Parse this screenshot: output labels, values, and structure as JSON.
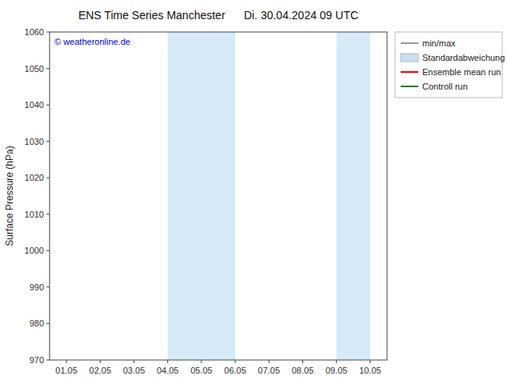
{
  "chart_data": {
    "type": "line",
    "title": "ENS Time Series Manchester      Di. 30.04.2024 09 UTC",
    "y_label": "Surface Pressure (hPa)",
    "categories": [
      "01.05",
      "02.05",
      "03.05",
      "04.05",
      "05.05",
      "06.05",
      "07.05",
      "08.05",
      "09.05",
      "10.05"
    ],
    "series": [
      {
        "name": "min/max",
        "color": "#999999",
        "type": "line",
        "values": [
          null,
          null,
          null,
          null,
          null,
          null,
          null,
          null,
          null,
          null
        ]
      },
      {
        "name": "Standardabweichung",
        "color": "#ccddee",
        "type": "area",
        "values": [
          null,
          null,
          null,
          null,
          null,
          null,
          null,
          null,
          null,
          null
        ]
      },
      {
        "name": "Ensemble mean run",
        "color": "red",
        "type": "line",
        "values": [
          null,
          null,
          null,
          null,
          null,
          null,
          null,
          null,
          null,
          null
        ]
      },
      {
        "name": "Controll run",
        "color": "green",
        "type": "line",
        "values": [
          null,
          null,
          null,
          null,
          null,
          null,
          null,
          null,
          null,
          null
        ]
      }
    ],
    "shaded_bands": [
      {
        "from": "04.05",
        "to": "06.05",
        "color": "#d6eaf8"
      },
      {
        "from": "09.05",
        "to": "10.05",
        "color": "#d6eaf8"
      }
    ],
    "annotations": [
      {
        "text": "© weatheronline.de",
        "color": "#0000cc"
      }
    ],
    "ylim": [
      970,
      1060
    ],
    "yticks": [
      970,
      980,
      990,
      1000,
      1010,
      1020,
      1030,
      1040,
      1050,
      1060
    ],
    "grid": false,
    "legend": "upper right"
  }
}
